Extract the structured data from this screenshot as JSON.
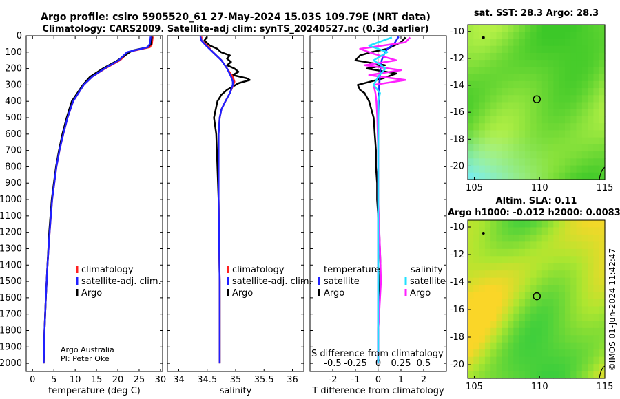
{
  "title": {
    "line1": "Argo profile: csiro 5905520_61 27-May-2024 15.03S 109.79E (NRT data)",
    "line2": "Climatology: CARS2009. Satellite-adj clim: synTS_20240527.nc (0.3d earlier)"
  },
  "colors": {
    "climatology": "#ff2020",
    "satellite": "#2020ff",
    "argo": "#000000",
    "sat_salinity": "#20e0ff",
    "argo_salinity": "#ff20ff"
  },
  "depth_ticks": [
    0,
    100,
    200,
    300,
    400,
    500,
    600,
    700,
    800,
    900,
    1000,
    1100,
    1200,
    1300,
    1400,
    1500,
    1600,
    1700,
    1800,
    1900,
    2000
  ],
  "legend": {
    "climatology": "climatology",
    "satellite": "satellite-adj. clim.",
    "argo": "Argo"
  },
  "legend3": {
    "temperature": "temperature",
    "salinity": "salinity",
    "satellite": "satellite",
    "argo": "Argo",
    "s_axis_label": "S difference from climatology"
  },
  "credit": {
    "line1": "Argo Australia",
    "line2": "PI: Peter Oke"
  },
  "timestamp": "©IMOS 01-Jun-2024 11:42:47",
  "chart_data": [
    {
      "type": "line",
      "title": "",
      "xlabel": "temperature (deg C)",
      "ylabel": "depth",
      "xlim": [
        -1.5,
        30.5
      ],
      "xticks": [
        0,
        5,
        10,
        15,
        20,
        25,
        30
      ],
      "ylim": [
        0,
        2050
      ],
      "series": [
        {
          "name": "climatology",
          "color": "#ff2020",
          "depth": [
            5,
            50,
            70,
            90,
            100,
            150,
            200,
            250,
            300,
            400,
            500,
            600,
            700,
            800,
            900,
            1000,
            1200,
            1400,
            1600,
            1800,
            2000
          ],
          "values": [
            28.2,
            28.0,
            27.5,
            24.0,
            22.5,
            20.5,
            17.0,
            14.0,
            12.0,
            9.5,
            8.2,
            7.2,
            6.3,
            5.6,
            5.1,
            4.6,
            4.0,
            3.5,
            3.1,
            2.8,
            2.6
          ]
        },
        {
          "name": "satellite-adj. clim.",
          "color": "#2020ff",
          "depth": [
            5,
            50,
            70,
            90,
            100,
            150,
            200,
            250,
            300,
            400,
            500,
            600,
            700,
            800,
            900,
            1000,
            1200,
            1400,
            1600,
            1800,
            2000
          ],
          "values": [
            27.7,
            27.5,
            27.0,
            23.8,
            22.2,
            20.2,
            16.9,
            14.0,
            12.0,
            9.5,
            8.2,
            7.2,
            6.3,
            5.6,
            5.1,
            4.6,
            4.0,
            3.5,
            3.1,
            2.8,
            2.6
          ]
        },
        {
          "name": "Argo",
          "color": "#000000",
          "depth": [
            5,
            50,
            70,
            90,
            100,
            150,
            200,
            250,
            300,
            350,
            400,
            500,
            600,
            700,
            800,
            900,
            1000,
            1200,
            1400,
            1600,
            1800,
            2000
          ],
          "values": [
            28.0,
            27.8,
            27.0,
            23.5,
            22.8,
            20.0,
            16.5,
            13.5,
            11.8,
            10.5,
            9.2,
            8.0,
            7.0,
            6.2,
            5.5,
            5.0,
            4.5,
            3.9,
            3.5,
            3.1,
            2.8,
            2.6
          ]
        }
      ]
    },
    {
      "type": "line",
      "title": "",
      "xlabel": "salinity",
      "ylabel": "depth",
      "xlim": [
        33.8,
        36.2
      ],
      "xticks": [
        34,
        34.5,
        35,
        35.5,
        36
      ],
      "ylim": [
        0,
        2050
      ],
      "series": [
        {
          "name": "climatology",
          "color": "#ff2020",
          "depth": [
            5,
            30,
            60,
            100,
            150,
            200,
            250,
            280,
            300,
            350,
            400,
            450,
            500,
            600,
            800,
            1000,
            1500,
            2000
          ],
          "values": [
            34.4,
            34.4,
            34.5,
            34.6,
            34.75,
            34.85,
            34.95,
            34.98,
            34.96,
            34.9,
            34.82,
            34.75,
            34.72,
            34.7,
            34.7,
            34.7,
            34.72,
            34.72
          ]
        },
        {
          "name": "satellite-adj. clim.",
          "color": "#2020ff",
          "depth": [
            5,
            30,
            60,
            100,
            150,
            200,
            250,
            280,
            300,
            350,
            400,
            450,
            500,
            600,
            800,
            1000,
            1500,
            2000
          ],
          "values": [
            34.38,
            34.4,
            34.48,
            34.6,
            34.75,
            34.85,
            34.92,
            34.95,
            34.95,
            34.9,
            34.82,
            34.75,
            34.72,
            34.7,
            34.7,
            34.7,
            34.72,
            34.72
          ]
        },
        {
          "name": "Argo",
          "color": "#000000",
          "depth": [
            5,
            30,
            60,
            80,
            100,
            120,
            140,
            160,
            180,
            200,
            220,
            240,
            260,
            270,
            290,
            310,
            330,
            360,
            400,
            450,
            500,
            600,
            800,
            1000,
            1500,
            2000
          ],
          "values": [
            34.5,
            34.45,
            34.55,
            34.68,
            34.74,
            34.9,
            34.85,
            34.92,
            34.85,
            34.98,
            35.05,
            34.95,
            35.2,
            35.25,
            35.05,
            34.95,
            34.85,
            34.75,
            34.68,
            34.65,
            34.62,
            34.66,
            34.68,
            34.7,
            34.72,
            34.72
          ]
        }
      ]
    },
    {
      "type": "line",
      "title": "",
      "xlabel": "T difference from climatology",
      "ylabel": "depth",
      "xlim": [
        -3,
        3
      ],
      "xticks": [
        -2,
        -1,
        0,
        1,
        2
      ],
      "s_xticks": [
        -0.5,
        -0.25,
        0,
        0.25,
        0.5
      ],
      "s_xlim": [
        -0.75,
        0.75
      ],
      "ylim": [
        0,
        2050
      ],
      "series": [
        {
          "name": "temperature satellite",
          "color": "#2020ff",
          "depth": [
            5,
            50,
            80,
            100,
            150,
            200,
            300,
            400,
            500,
            800,
            1000,
            1500,
            2000
          ],
          "values": [
            0.9,
            0.7,
            0.4,
            0.3,
            0.15,
            0.1,
            0.05,
            0.02,
            0.0,
            0.0,
            0.0,
            0.0,
            0.0
          ]
        },
        {
          "name": "temperature Argo",
          "color": "#000000",
          "depth": [
            10,
            40,
            80,
            100,
            120,
            150,
            180,
            200,
            230,
            260,
            300,
            330,
            350,
            400,
            450,
            500,
            600,
            700,
            800,
            900,
            1000,
            1200,
            1400,
            1600,
            1800,
            2000
          ],
          "values": [
            1.2,
            1.0,
            0.4,
            -0.3,
            -0.8,
            -1.0,
            0.3,
            -0.5,
            0.8,
            0.2,
            -0.9,
            -0.8,
            -0.6,
            -0.4,
            -0.3,
            -0.2,
            -0.15,
            -0.1,
            -0.1,
            -0.05,
            -0.05,
            0.05,
            0.1,
            0.05,
            0.0,
            0.0
          ]
        },
        {
          "name": "salinity satellite",
          "color": "#20e0ff",
          "depth": [
            10,
            60,
            100,
            150,
            200,
            250,
            300,
            350,
            400,
            500,
            800,
            1000,
            1500,
            2000
          ],
          "values": [
            0.15,
            -0.1,
            0.1,
            -0.05,
            0.08,
            0.0,
            -0.05,
            0.02,
            0.0,
            0.0,
            0.0,
            0.0,
            0.0,
            0.0
          ]
        },
        {
          "name": "salinity Argo",
          "color": "#ff20ff",
          "depth": [
            10,
            40,
            80,
            110,
            150,
            180,
            210,
            240,
            270,
            300,
            350,
            400,
            500,
            700,
            1000,
            1300,
            1500,
            1800,
            2000
          ],
          "values": [
            0.35,
            0.3,
            -0.2,
            -0.05,
            0.2,
            -0.15,
            0.25,
            -0.1,
            0.3,
            -0.05,
            -0.03,
            -0.02,
            -0.01,
            0.0,
            0.0,
            0.02,
            0.03,
            0.0,
            0.0
          ]
        }
      ]
    },
    {
      "type": "heatmap",
      "title": "sat. SST: 28.3 Argo: 28.3",
      "xlim": [
        104.5,
        115
      ],
      "ylim": [
        -21,
        -9.5
      ],
      "xticks": [
        105,
        110,
        115
      ],
      "yticks": [
        -10,
        -12,
        -14,
        -16,
        -18,
        -20
      ],
      "argo_position": {
        "lon": 109.79,
        "lat": -15.03
      }
    },
    {
      "type": "heatmap",
      "title": "Altim. SLA: 0.11",
      "subtitle": "Argo h1000: -0.012 h2000: 0.0083",
      "xlim": [
        104.5,
        115
      ],
      "ylim": [
        -21,
        -9.5
      ],
      "xticks": [
        105,
        110,
        115
      ],
      "yticks": [
        -10,
        -12,
        -14,
        -16,
        -18,
        -20
      ],
      "argo_position": {
        "lon": 109.79,
        "lat": -15.03
      }
    }
  ]
}
